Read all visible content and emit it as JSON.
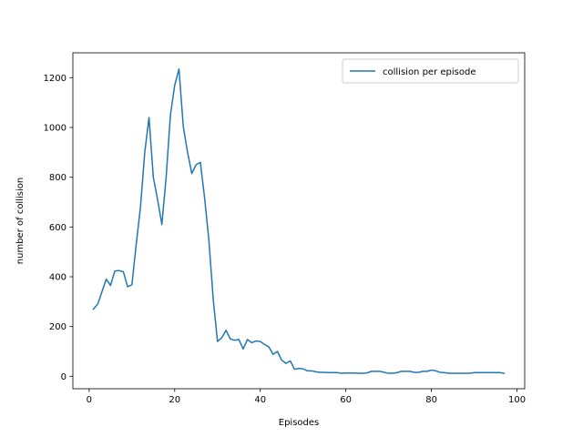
{
  "chart_data": {
    "type": "line",
    "title": "",
    "xlabel": "Episodes",
    "ylabel": "number of collision",
    "xlim": [
      -3.8,
      101.8
    ],
    "ylim": [
      -50,
      1300
    ],
    "x_ticks": [
      0,
      20,
      40,
      60,
      80,
      100
    ],
    "y_ticks": [
      0,
      200,
      400,
      600,
      800,
      1000,
      1200
    ],
    "grid": false,
    "legend": {
      "position": "top-right",
      "entries": [
        "collision per episode"
      ]
    },
    "series": [
      {
        "name": "collision per episode",
        "color": "#1f77b4",
        "x": [
          1,
          2,
          3,
          4,
          5,
          6,
          7,
          8,
          9,
          10,
          11,
          12,
          13,
          14,
          15,
          16,
          17,
          18,
          19,
          20,
          21,
          22,
          23,
          24,
          25,
          26,
          27,
          28,
          29,
          30,
          31,
          32,
          33,
          34,
          35,
          36,
          37,
          38,
          39,
          40,
          41,
          42,
          43,
          44,
          45,
          46,
          47,
          48,
          49,
          50,
          51,
          52,
          53,
          54,
          55,
          56,
          57,
          58,
          59,
          60,
          61,
          62,
          63,
          64,
          65,
          66,
          67,
          68,
          69,
          70,
          71,
          72,
          73,
          74,
          75,
          76,
          77,
          78,
          79,
          80,
          81,
          82,
          83,
          84,
          85,
          86,
          87,
          88,
          89,
          90,
          91,
          92,
          93,
          94,
          95,
          96,
          97
        ],
        "y": [
          270,
          290,
          340,
          390,
          365,
          423,
          425,
          420,
          360,
          368,
          530,
          680,
          900,
          1040,
          800,
          710,
          610,
          800,
          1050,
          1170,
          1235,
          1005,
          900,
          815,
          850,
          860,
          715,
          545,
          310,
          140,
          155,
          185,
          150,
          145,
          148,
          110,
          148,
          135,
          142,
          140,
          128,
          118,
          88,
          100,
          65,
          52,
          62,
          28,
          32,
          30,
          22,
          22,
          18,
          16,
          16,
          15,
          15,
          15,
          12,
          13,
          13,
          13,
          12,
          12,
          14,
          20,
          20,
          20,
          16,
          12,
          12,
          15,
          20,
          20,
          20,
          16,
          16,
          20,
          20,
          25,
          22,
          16,
          15,
          12,
          12,
          12,
          12,
          12,
          12,
          15,
          15,
          15,
          15,
          15,
          15,
          15,
          12
        ]
      }
    ]
  }
}
